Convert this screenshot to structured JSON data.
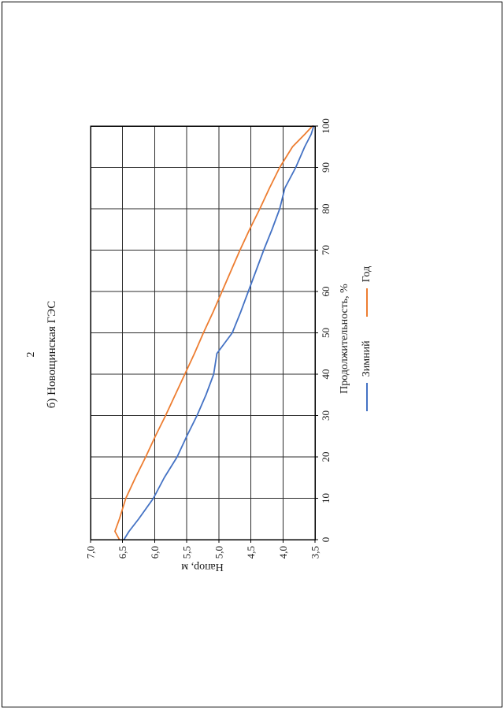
{
  "page": {
    "number": "2"
  },
  "chart_data": {
    "type": "line",
    "title": "б) Новощинская ГЭС",
    "xlabel": "Продолжительность, %",
    "ylabel": "Напор, м",
    "xlim": [
      0,
      100
    ],
    "ylim": [
      3.5,
      7.0
    ],
    "grid": true,
    "legend_position": "bottom",
    "xticks": [
      0,
      10,
      20,
      30,
      40,
      50,
      60,
      70,
      80,
      90,
      100
    ],
    "ytick_values": [
      3.5,
      4.0,
      4.5,
      5.0,
      5.5,
      6.0,
      6.5,
      7.0
    ],
    "ytick_labels": [
      "3,5",
      "4,0",
      "4,5",
      "5,0",
      "5,5",
      "6,0",
      "6,5",
      "7,0"
    ],
    "x": [
      0,
      2,
      5,
      10,
      15,
      20,
      25,
      30,
      35,
      40,
      45,
      50,
      55,
      60,
      65,
      70,
      75,
      80,
      85,
      90,
      95,
      98,
      100
    ],
    "series": [
      {
        "name": "Зимний",
        "color": "#4472C4",
        "values": [
          6.48,
          6.4,
          6.25,
          6.02,
          5.85,
          5.65,
          5.5,
          5.34,
          5.2,
          5.08,
          5.03,
          4.79,
          4.66,
          4.54,
          4.42,
          4.3,
          4.17,
          4.05,
          3.97,
          3.8,
          3.66,
          3.56,
          3.52
        ]
      },
      {
        "name": "Год",
        "color": "#ED7D31",
        "values": [
          6.55,
          6.62,
          6.55,
          6.45,
          6.3,
          6.14,
          5.99,
          5.83,
          5.68,
          5.53,
          5.38,
          5.24,
          5.09,
          4.95,
          4.81,
          4.67,
          4.52,
          4.36,
          4.21,
          4.05,
          3.85,
          3.66,
          3.54
        ]
      }
    ]
  }
}
